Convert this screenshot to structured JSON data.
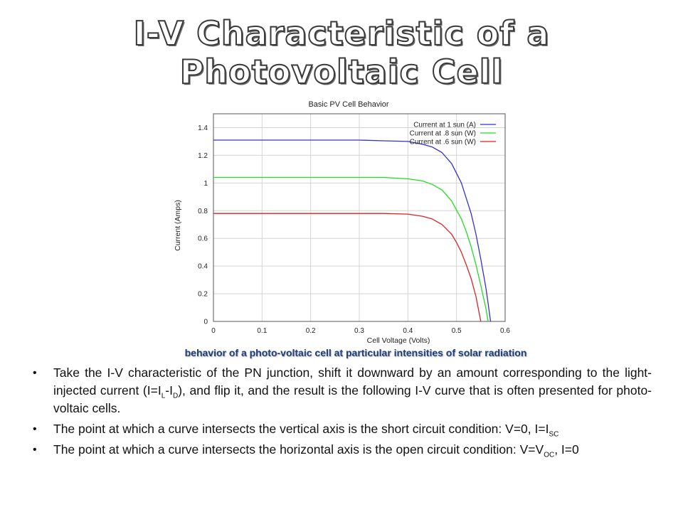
{
  "title": "I-V Characteristic of a Photovoltaic Cell",
  "caption": "behavior of a photo-voltaic cell at particular intensities of solar radiation",
  "bullets": [
    {
      "parts": [
        "Take the I-V characteristic of the PN junction, shift it downward by an amount corresponding to the light-injected current (I=I",
        "L",
        "-I",
        "D",
        "), and flip it, and the result is the following I-V curve that is often presented for photo-voltaic cells."
      ]
    },
    {
      "parts": [
        "The point at which a curve intersects the vertical axis is the short circuit condition: V=0, I=I",
        "SC"
      ]
    },
    {
      "parts": [
        "The point at which a curve intersects the horizontal axis is the open circuit condition: V=V",
        "OC",
        ", I=0"
      ]
    }
  ],
  "chart_data": {
    "type": "line",
    "title": "Basic PV Cell Behavior",
    "xlabel": "Cell Voltage (Volts)",
    "ylabel": "Current (Amps)",
    "xlim": [
      0,
      0.6
    ],
    "ylim": [
      0,
      1.5
    ],
    "xticks": [
      "0",
      "0.1",
      "0.2",
      "0.3",
      "0.4",
      "0.5",
      "0.6"
    ],
    "yticks": [
      "0",
      "0.2",
      "0.4",
      "0.6",
      "0.8",
      "1",
      "1.2",
      "1.4"
    ],
    "grid": true,
    "legend_position": "top-right",
    "series": [
      {
        "name": "Current at 1 sun (A)",
        "color": "#3333cc",
        "x": [
          0,
          0.1,
          0.2,
          0.3,
          0.35,
          0.4,
          0.43,
          0.45,
          0.47,
          0.49,
          0.51,
          0.53,
          0.54,
          0.55,
          0.56,
          0.565,
          0.57
        ],
        "y": [
          1.31,
          1.31,
          1.31,
          1.31,
          1.305,
          1.3,
          1.28,
          1.26,
          1.22,
          1.14,
          1.0,
          0.78,
          0.63,
          0.45,
          0.25,
          0.13,
          0
        ]
      },
      {
        "name": "Current at .8 sun (W)",
        "color": "#22dd22",
        "x": [
          0,
          0.1,
          0.2,
          0.3,
          0.35,
          0.4,
          0.43,
          0.45,
          0.47,
          0.49,
          0.51,
          0.52,
          0.53,
          0.54,
          0.55,
          0.56,
          0.565
        ],
        "y": [
          1.04,
          1.04,
          1.04,
          1.04,
          1.04,
          1.03,
          1.015,
          0.99,
          0.95,
          0.87,
          0.74,
          0.65,
          0.54,
          0.41,
          0.26,
          0.1,
          0
        ]
      },
      {
        "name": "Current at .6 sun (W)",
        "color": "#dd2222",
        "x": [
          0,
          0.1,
          0.2,
          0.3,
          0.35,
          0.4,
          0.43,
          0.45,
          0.47,
          0.49,
          0.5,
          0.51,
          0.52,
          0.53,
          0.54,
          0.55
        ],
        "y": [
          0.78,
          0.78,
          0.78,
          0.78,
          0.78,
          0.775,
          0.76,
          0.74,
          0.7,
          0.63,
          0.57,
          0.5,
          0.41,
          0.31,
          0.18,
          0
        ]
      }
    ]
  }
}
